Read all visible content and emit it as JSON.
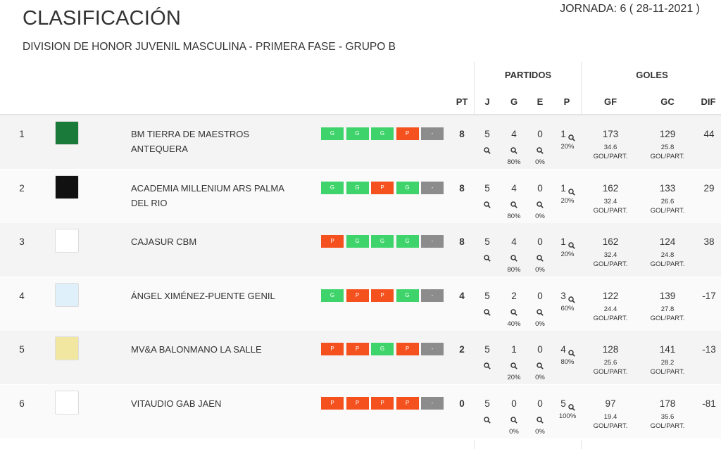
{
  "header": {
    "title": "CLASIFICACIÓN",
    "subtitle": "DIVISION DE HONOR JUVENIL MASCULINA - PRIMERA FASE - GRUPO B",
    "jornada": "JORNADA: 6 ( 28-11-2021 )"
  },
  "table": {
    "groups": {
      "partidos": "PARTIDOS",
      "goles": "GOLES"
    },
    "columns": {
      "pt": "PT",
      "j": "J",
      "g": "G",
      "e": "E",
      "p": "P",
      "gf": "GF",
      "gc": "GC",
      "dif": "DIF"
    },
    "avg_label": "GOL/PART.",
    "rows": [
      {
        "pos": 1,
        "team": "BM TIERRA DE MAESTROS ANTEQUERA",
        "form": [
          "G",
          "G",
          "G",
          "P",
          "-"
        ],
        "pt": 8,
        "j": 5,
        "g": 4,
        "e": 0,
        "p": 1,
        "g_pct": "80%",
        "e_pct": "0%",
        "p_pct": "20%",
        "gf": 173,
        "gc": 129,
        "gf_avg": 34.6,
        "gc_avg": 25.8,
        "dif": 44
      },
      {
        "pos": 2,
        "team": "ACADEMIA MILLENIUM ARS PALMA DEL RIO",
        "form": [
          "G",
          "G",
          "P",
          "G",
          "-"
        ],
        "pt": 8,
        "j": 5,
        "g": 4,
        "e": 0,
        "p": 1,
        "g_pct": "80%",
        "e_pct": "0%",
        "p_pct": "20%",
        "gf": 162,
        "gc": 133,
        "gf_avg": 32.4,
        "gc_avg": 26.6,
        "dif": 29
      },
      {
        "pos": 3,
        "team": "CAJASUR CBM",
        "form": [
          "P",
          "G",
          "G",
          "G",
          "-"
        ],
        "pt": 8,
        "j": 5,
        "g": 4,
        "e": 0,
        "p": 1,
        "g_pct": "80%",
        "e_pct": "0%",
        "p_pct": "20%",
        "gf": 162,
        "gc": 124,
        "gf_avg": 32.4,
        "gc_avg": 24.8,
        "dif": 38
      },
      {
        "pos": 4,
        "team": "ÁNGEL XIMÉNEZ-PUENTE GENIL",
        "form": [
          "G",
          "P",
          "P",
          "G",
          "-"
        ],
        "pt": 4,
        "j": 5,
        "g": 2,
        "e": 0,
        "p": 3,
        "g_pct": "40%",
        "e_pct": "0%",
        "p_pct": "60%",
        "gf": 122,
        "gc": 139,
        "gf_avg": 24.4,
        "gc_avg": 27.8,
        "dif": -17
      },
      {
        "pos": 5,
        "team": "MV&A BALONMANO LA SALLE",
        "form": [
          "P",
          "P",
          "G",
          "P",
          "-"
        ],
        "pt": 2,
        "j": 5,
        "g": 1,
        "e": 0,
        "p": 4,
        "g_pct": "20%",
        "e_pct": "0%",
        "p_pct": "80%",
        "gf": 128,
        "gc": 141,
        "gf_avg": 25.6,
        "gc_avg": 28.2,
        "dif": -13
      },
      {
        "pos": 6,
        "team": "VITAUDIO GAB JAEN",
        "form": [
          "P",
          "P",
          "P",
          "P",
          "-"
        ],
        "pt": 0,
        "j": 5,
        "g": 0,
        "e": 0,
        "p": 5,
        "g_pct": "0%",
        "e_pct": "0%",
        "p_pct": "100%",
        "gf": 97,
        "gc": 178,
        "gf_avg": 19.4,
        "gc_avg": 35.6,
        "dif": -81
      }
    ]
  }
}
